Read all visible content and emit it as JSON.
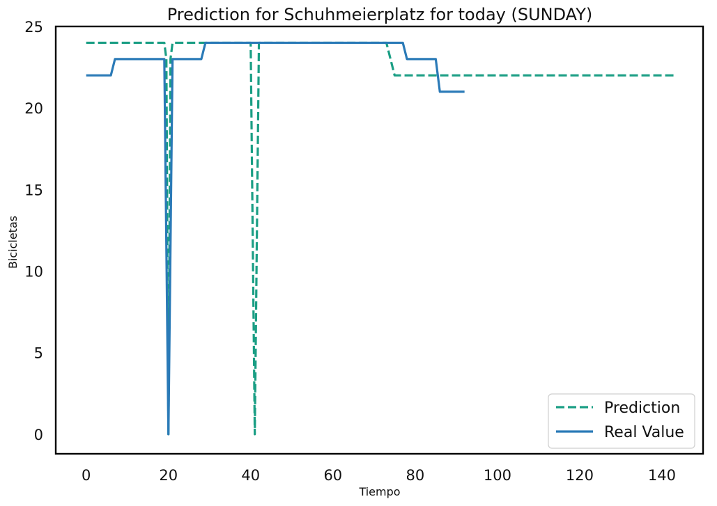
{
  "chart_data": {
    "type": "line",
    "title": "Prediction for Schuhmeierplatz for today (SUNDAY)",
    "xlabel": "Tiempo",
    "ylabel": "Bicicletas",
    "xlim": [
      -7.4,
      150.0
    ],
    "ylim": [
      -1.2,
      25.0
    ],
    "xticks": [
      0,
      20,
      40,
      60,
      80,
      100,
      120,
      140
    ],
    "yticks": [
      0,
      5,
      10,
      15,
      20,
      25
    ],
    "grid": false,
    "legend": {
      "position": "bottom-right",
      "entries": [
        "Prediction",
        "Real Value"
      ]
    },
    "series": [
      {
        "name": "Prediction",
        "style": "dashed",
        "color": "#1a9e84",
        "points": [
          [
            0,
            24
          ],
          [
            19,
            24
          ],
          [
            19.5,
            23
          ],
          [
            20,
            0
          ],
          [
            20.5,
            23
          ],
          [
            21,
            24
          ],
          [
            40,
            24
          ],
          [
            41,
            0
          ],
          [
            42,
            24
          ],
          [
            73,
            24
          ],
          [
            75,
            22
          ],
          [
            143,
            22
          ]
        ]
      },
      {
        "name": "Real Value",
        "style": "solid",
        "color": "#2a7ab7",
        "points": [
          [
            0,
            22
          ],
          [
            6,
            22
          ],
          [
            7,
            23
          ],
          [
            19,
            23
          ],
          [
            20,
            0
          ],
          [
            21,
            23
          ],
          [
            28,
            23
          ],
          [
            29,
            24
          ],
          [
            77,
            24
          ],
          [
            78,
            23
          ],
          [
            85,
            23
          ],
          [
            86,
            21
          ],
          [
            92,
            21
          ]
        ]
      }
    ]
  }
}
